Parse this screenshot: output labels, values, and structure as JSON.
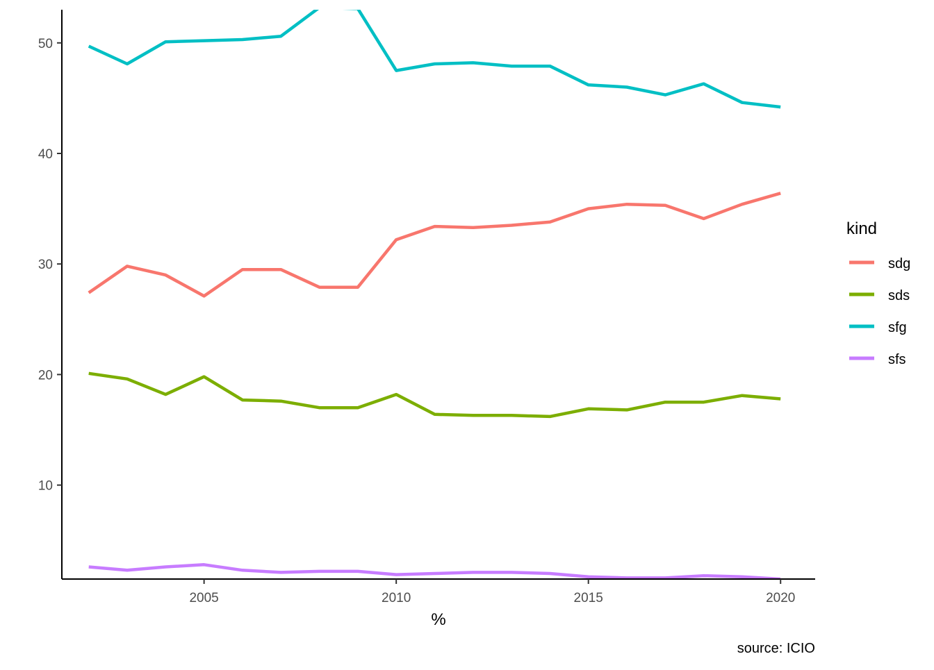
{
  "chart_data": {
    "type": "line",
    "title": "",
    "xlabel": "%",
    "ylabel": "",
    "caption": "source: ICIO",
    "xlim": [
      2001.3,
      2020.9
    ],
    "ylim": [
      1.5,
      53.0
    ],
    "x_ticks": [
      "2005",
      "2010",
      "2015",
      "2020"
    ],
    "y_ticks": [
      "10",
      "20",
      "30",
      "40",
      "50"
    ],
    "grid": false,
    "legend": {
      "title": "kind",
      "position": "right"
    },
    "x": [
      2002,
      2003,
      2004,
      2005,
      2006,
      2007,
      2008,
      2009,
      2010,
      2011,
      2012,
      2013,
      2014,
      2015,
      2016,
      2017,
      2018,
      2019,
      2020
    ],
    "series": [
      {
        "name": "sdg",
        "color": "#F8766D",
        "values": [
          27.4,
          29.8,
          29.0,
          27.1,
          29.5,
          29.5,
          27.9,
          27.9,
          32.2,
          33.4,
          33.3,
          33.5,
          33.8,
          35.0,
          35.4,
          35.3,
          34.1,
          35.4,
          36.4
        ]
      },
      {
        "name": "sds",
        "color": "#7CAE00",
        "values": [
          20.1,
          19.6,
          18.2,
          19.8,
          17.7,
          17.6,
          17.0,
          17.0,
          18.2,
          16.4,
          16.3,
          16.3,
          16.2,
          16.9,
          16.8,
          17.5,
          17.5,
          18.1,
          17.8
        ]
      },
      {
        "name": "sfg",
        "color": "#00BFC4",
        "values": [
          49.7,
          48.1,
          50.1,
          50.2,
          50.3,
          50.6,
          53.2,
          53.1,
          47.5,
          48.1,
          48.2,
          47.9,
          47.9,
          46.2,
          46.0,
          45.3,
          46.3,
          44.6,
          44.2
        ]
      },
      {
        "name": "sfs",
        "color": "#C77CFF",
        "values": [
          2.6,
          2.3,
          2.6,
          2.8,
          2.3,
          2.1,
          2.2,
          2.2,
          1.9,
          2.0,
          2.1,
          2.1,
          2.0,
          1.7,
          1.6,
          1.6,
          1.8,
          1.7,
          1.5
        ]
      }
    ]
  }
}
